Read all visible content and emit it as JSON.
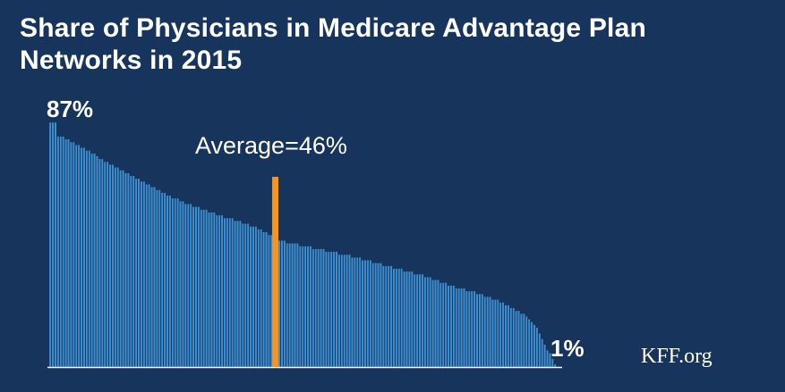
{
  "title": "Share of Physicians in Medicare Advantage Plan Networks in 2015",
  "source": "KFF.org",
  "colors": {
    "background": "#17355c",
    "bar": "#3d8fd2",
    "bar_edge": "#0f2a4a",
    "average_bar": "#f7941d",
    "text": "#ffffff"
  },
  "chart_data": {
    "type": "bar",
    "xlabel": "",
    "ylabel": "",
    "ylim": [
      0,
      87
    ],
    "grid": false,
    "legend": "none",
    "annotations": {
      "max_label": "87%",
      "min_label": "1%",
      "average_label": "Average=46%",
      "average_value": 46
    },
    "average_position": 86,
    "values": [
      87,
      87,
      87,
      82,
      82,
      82,
      81,
      81,
      80,
      80,
      79,
      79,
      78,
      78,
      77,
      77,
      76,
      76,
      75,
      74,
      74,
      73,
      73,
      72,
      72,
      71,
      71,
      70,
      70,
      69,
      69,
      68,
      68,
      67,
      67,
      66,
      66,
      65,
      65,
      64,
      64,
      63,
      63,
      62,
      62,
      61,
      61,
      60,
      60,
      60,
      59,
      59,
      58,
      58,
      58,
      57,
      57,
      57,
      56,
      56,
      56,
      55,
      55,
      55,
      54,
      54,
      54,
      53,
      53,
      53,
      53,
      52,
      52,
      52,
      51,
      51,
      51,
      50,
      50,
      50,
      49,
      49,
      48,
      48,
      47,
      47,
      46,
      46,
      45,
      45,
      45,
      44,
      44,
      44,
      44,
      44,
      43,
      43,
      43,
      43,
      43,
      42,
      42,
      42,
      42,
      42,
      41,
      41,
      41,
      41,
      41,
      40,
      40,
      40,
      40,
      40,
      39,
      39,
      39,
      39,
      38,
      38,
      38,
      38,
      37,
      37,
      37,
      37,
      36,
      36,
      36,
      36,
      35,
      35,
      35,
      35,
      34,
      34,
      34,
      34,
      33,
      33,
      33,
      33,
      32,
      32,
      32,
      31,
      31,
      31,
      30,
      30,
      30,
      29,
      29,
      29,
      28,
      28,
      28,
      28,
      27,
      27,
      27,
      27,
      26,
      26,
      26,
      25,
      25,
      25,
      24,
      24,
      24,
      23,
      23,
      22,
      22,
      21,
      21,
      20,
      20,
      19,
      19,
      18,
      17,
      16,
      15,
      14,
      12,
      10,
      8,
      6,
      5,
      3,
      1
    ]
  }
}
